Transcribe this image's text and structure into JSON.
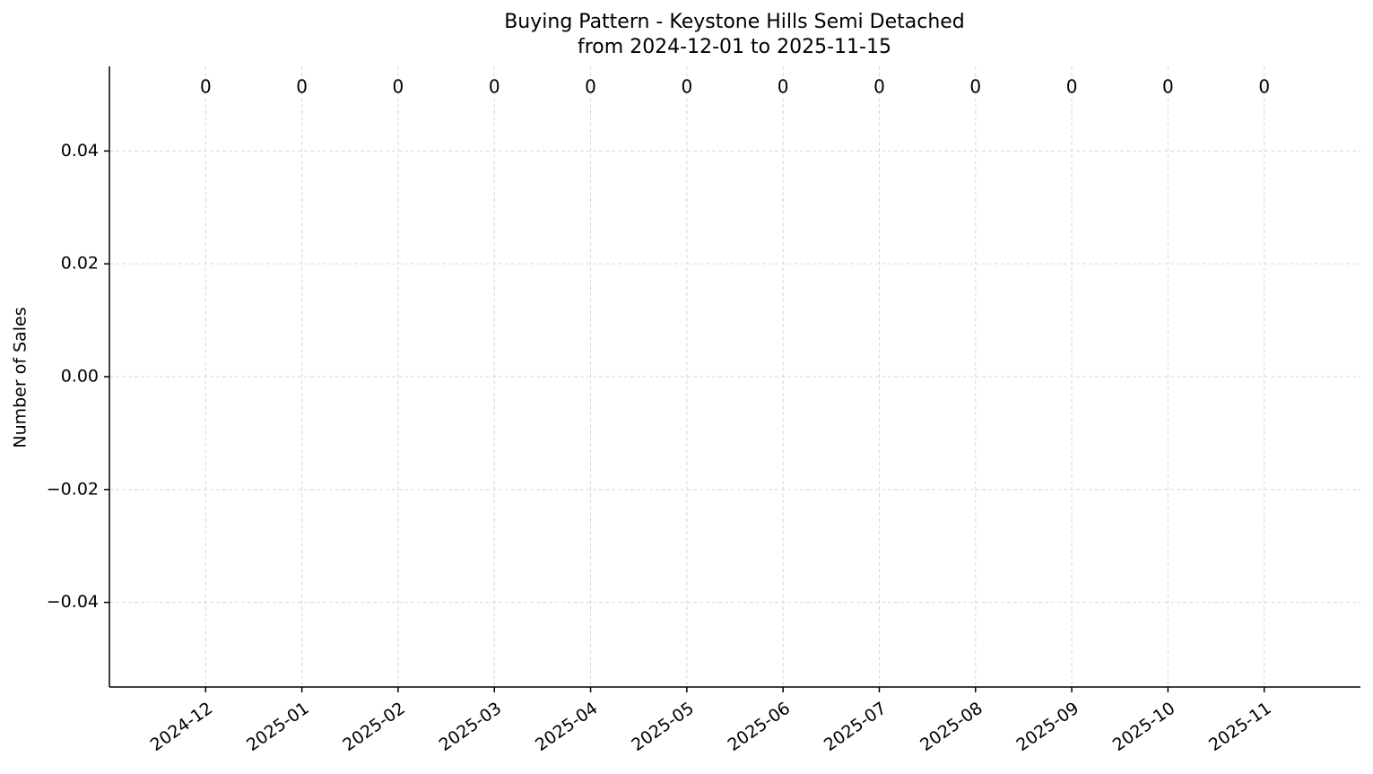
{
  "chart_data": {
    "type": "bar",
    "title": "Buying Pattern - Keystone Hills Semi Detached",
    "subtitle": "from 2024-12-01 to 2025-11-15",
    "y_label": "Number of Sales",
    "categories": [
      "2024-12",
      "2025-01",
      "2025-02",
      "2025-03",
      "2025-04",
      "2025-05",
      "2025-06",
      "2025-07",
      "2025-08",
      "2025-09",
      "2025-10",
      "2025-11"
    ],
    "values": [
      0,
      0,
      0,
      0,
      0,
      0,
      0,
      0,
      0,
      0,
      0,
      0
    ],
    "ylim": [
      -0.055,
      0.055
    ],
    "yticks": [
      {
        "value": -0.04,
        "label": "−0.04"
      },
      {
        "value": -0.02,
        "label": "−0.02"
      },
      {
        "value": 0,
        "label": "0.00"
      },
      {
        "value": 0.02,
        "label": "0.02"
      },
      {
        "value": 0.04,
        "label": "0.04"
      }
    ],
    "grid": true
  }
}
